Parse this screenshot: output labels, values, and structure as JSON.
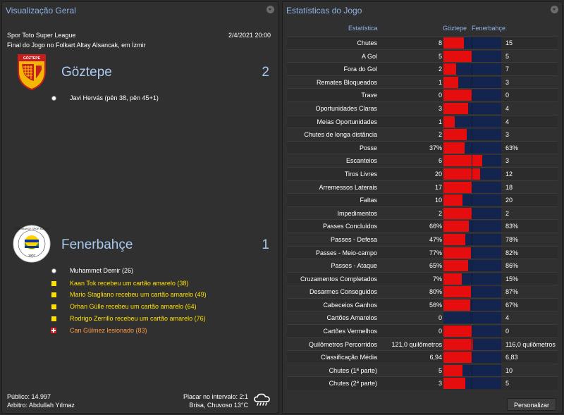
{
  "overview": {
    "title": "Visualização Geral",
    "competition": "Spor Toto Super League",
    "datetime": "2/4/2021 20:00",
    "result_text": "Final do Jogo no Folkart Altay Alsancak, em İzmir",
    "home": {
      "name": "Göztepe",
      "score": "2",
      "crest_text": "GÖZTEPE",
      "events": [
        {
          "type": "goal",
          "text": "Javi Hervás (pên 38, pên 45+1)"
        }
      ]
    },
    "away": {
      "name": "Fenerbahçe",
      "score": "1",
      "crest_text": "FENERBAHÇE SPOR KULÜBÜ",
      "crest_year": "1907",
      "events": [
        {
          "type": "goal",
          "text": "Muhammet Demir (26)"
        },
        {
          "type": "yellow",
          "text": "Kaan Tok recebeu um cartão amarelo (38)"
        },
        {
          "type": "yellow",
          "text": "Mario Stagliano recebeu um cartão amarelo (49)"
        },
        {
          "type": "yellow",
          "text": "Orhan Gülle recebeu um cartão amarelo (64)"
        },
        {
          "type": "yellow",
          "text": "Rodrigo Zerrillo recebeu um cartão amarelo (76)"
        },
        {
          "type": "injury",
          "text": "Can Gülmez lesionado (83)"
        }
      ]
    },
    "footer": {
      "attendance": "Público: 14.997",
      "referee": "Arbitro: Abdullah Yılmaz",
      "halftime": "Placar no intervalo: 2:1",
      "weather": "Brisa, Chuvoso 13°C",
      "weather_icon": "rain-cloud-icon"
    }
  },
  "stats": {
    "title": "Estatísticas do Jogo",
    "header_label": "Estatística",
    "header_home": "Göztepe",
    "header_away": "Fenerbahçe",
    "customize_label": "Personalizar",
    "colors": {
      "home": "#e50d0d",
      "away": "#13244f"
    },
    "rows": [
      {
        "label": "Chutes",
        "home": "8",
        "away": "15",
        "home_share": 0.35
      },
      {
        "label": "A Gol",
        "home": "5",
        "away": "5",
        "home_share": 0.5
      },
      {
        "label": "Fora do Gol",
        "home": "2",
        "away": "7",
        "home_share": 0.22
      },
      {
        "label": "Remates Bloqueados",
        "home": "1",
        "away": "3",
        "home_share": 0.25
      },
      {
        "label": "Trave",
        "home": "0",
        "away": "0",
        "home_share": 0.5
      },
      {
        "label": "Oportunidades Claras",
        "home": "3",
        "away": "4",
        "home_share": 0.43
      },
      {
        "label": "Meias Oportunidades",
        "home": "1",
        "away": "4",
        "home_share": 0.2
      },
      {
        "label": "Chutes de longa distância",
        "home": "2",
        "away": "3",
        "home_share": 0.4
      },
      {
        "label": "Posse",
        "home": "37%",
        "away": "63%",
        "home_share": 0.37
      },
      {
        "label": "Escanteios",
        "home": "6",
        "away": "3",
        "home_share": 0.67
      },
      {
        "label": "Tiros Livres",
        "home": "20",
        "away": "12",
        "home_share": 0.63
      },
      {
        "label": "Arremessos Laterais",
        "home": "17",
        "away": "18",
        "home_share": 0.49
      },
      {
        "label": "Faltas",
        "home": "10",
        "away": "20",
        "home_share": 0.33
      },
      {
        "label": "Impedimentos",
        "home": "2",
        "away": "2",
        "home_share": 0.5
      },
      {
        "label": "Passes Concluídos",
        "home": "66%",
        "away": "83%",
        "home_share": 0.44
      },
      {
        "label": "Passes - Defesa",
        "home": "47%",
        "away": "78%",
        "home_share": 0.38
      },
      {
        "label": "Passes - Meio-campo",
        "home": "77%",
        "away": "82%",
        "home_share": 0.48
      },
      {
        "label": "Passes - Ataque",
        "home": "65%",
        "away": "86%",
        "home_share": 0.43
      },
      {
        "label": "Cruzamentos Completados",
        "home": "7%",
        "away": "15%",
        "home_share": 0.32
      },
      {
        "label": "Desarmes Conseguidos",
        "home": "80%",
        "away": "87%",
        "home_share": 0.48
      },
      {
        "label": "Cabeceios Ganhos",
        "home": "56%",
        "away": "67%",
        "home_share": 0.46
      },
      {
        "label": "Cartões Amarelos",
        "home": "0",
        "away": "4",
        "home_share": 0.0
      },
      {
        "label": "Cartões Vermelhos",
        "home": "0",
        "away": "0",
        "home_share": 0.5
      },
      {
        "label": "Quilômetros Percorridos",
        "home": "121,0 quilômetros",
        "away": "116,0 quilômetros",
        "home_share": 0.51
      },
      {
        "label": "Classificação Média",
        "home": "6,94",
        "away": "6,83",
        "home_share": 0.5
      },
      {
        "label": "Chutes (1ª parte)",
        "home": "5",
        "away": "10",
        "home_share": 0.33
      },
      {
        "label": "Chutes (2ª parte)",
        "home": "3",
        "away": "5",
        "home_share": 0.38
      }
    ]
  }
}
